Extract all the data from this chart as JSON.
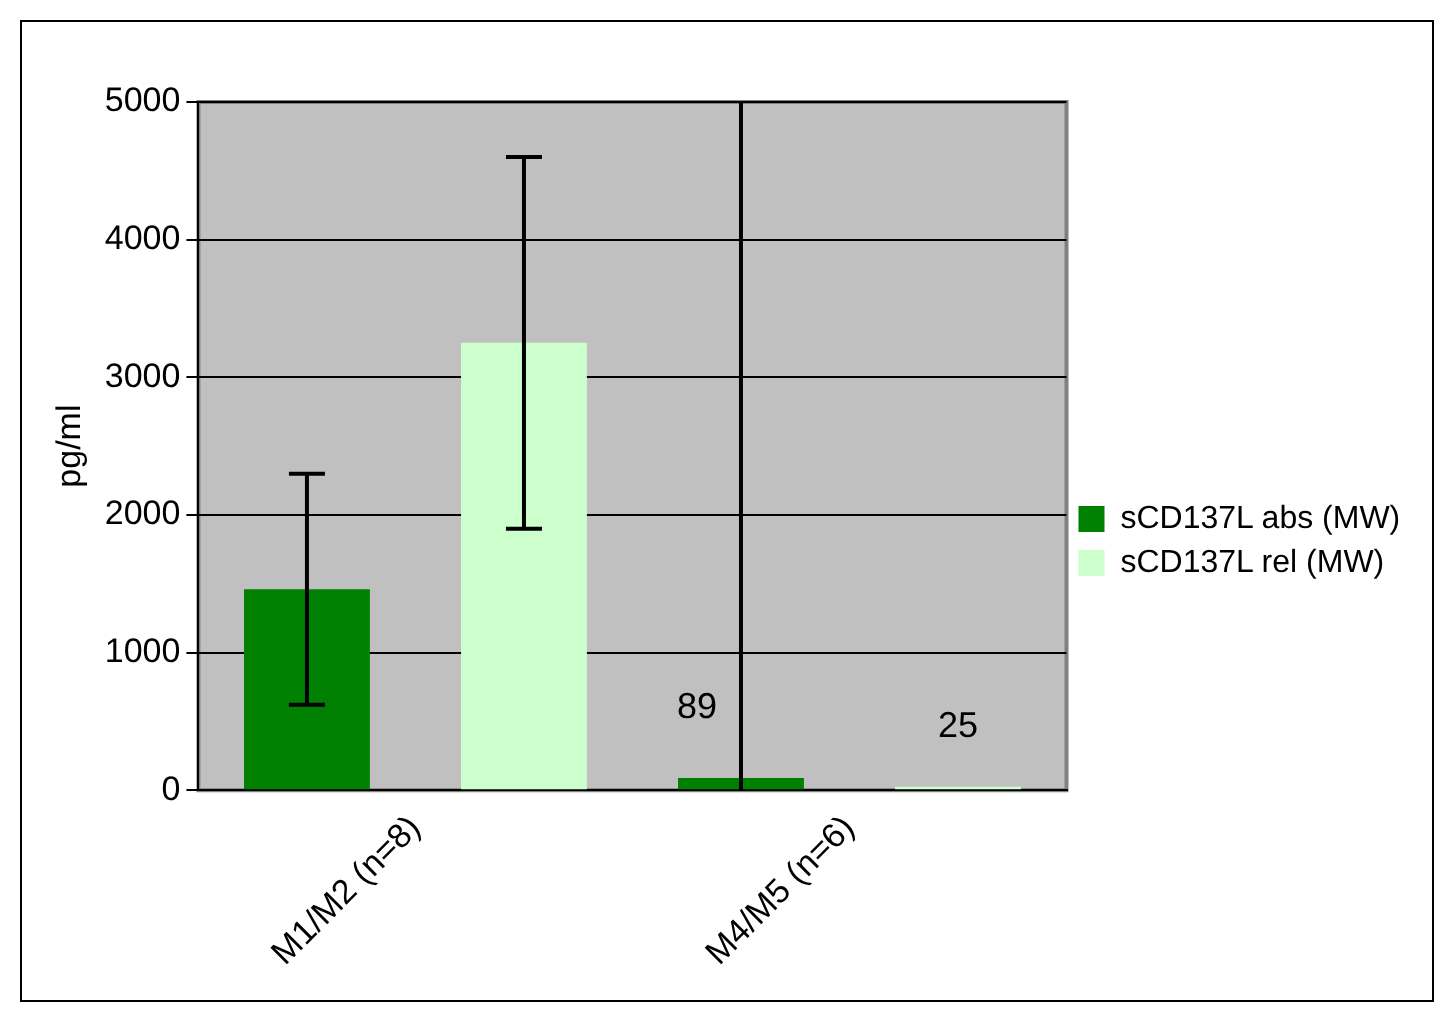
{
  "chart_data": {
    "type": "bar",
    "ylabel": "pg/ml",
    "categories": [
      "M1/M2 (n=8)",
      "M4/M5 (n=6)"
    ],
    "series": [
      {
        "name": "sCD137L abs (MW)",
        "color": "#008000",
        "values": [
          1460,
          89
        ],
        "errors": [
          840,
          [
            0,
            5000
          ]
        ],
        "value_labels": [
          null,
          "89"
        ]
      },
      {
        "name": "sCD137L rel (MW)",
        "color": "#ccffcc",
        "values": [
          3250,
          25
        ],
        "errors": [
          1350,
          null
        ],
        "value_labels": [
          null,
          "25"
        ]
      }
    ],
    "ylim": [
      0,
      5000
    ],
    "yticks": [
      0,
      1000,
      2000,
      3000,
      4000,
      5000
    ],
    "grid": "y",
    "legend": "right"
  }
}
